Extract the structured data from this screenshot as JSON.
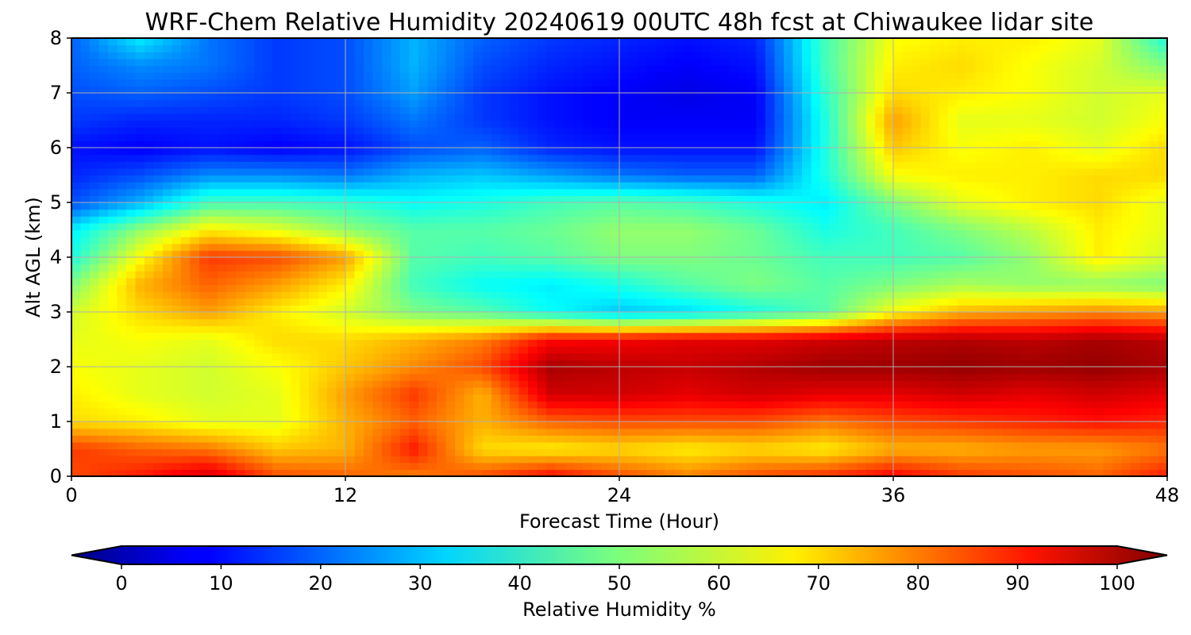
{
  "chart_data": {
    "type": "heatmap",
    "title": "WRF-Chem Relative Humidity 20240619 00UTC 48h fcst at Chiwaukee lidar site",
    "xlabel": "Forecast Time (Hour)",
    "ylabel": "Alt AGL (km)",
    "xlim": [
      0,
      48
    ],
    "ylim": [
      0,
      8
    ],
    "x_ticks": [
      "0",
      "12",
      "24",
      "36",
      "48"
    ],
    "y_ticks": [
      "0",
      "1",
      "2",
      "3",
      "4",
      "5",
      "6",
      "7",
      "8"
    ],
    "grid": true,
    "colorscale": "jet",
    "colorbar": {
      "label": "Relative Humidity %",
      "orientation": "horizontal",
      "position": "bottom",
      "extend": "both",
      "range": [
        0,
        100
      ],
      "ticks": [
        "0",
        "10",
        "20",
        "30",
        "40",
        "50",
        "60",
        "70",
        "80",
        "90",
        "100"
      ]
    },
    "x": [
      0,
      3,
      6,
      9,
      12,
      15,
      18,
      21,
      24,
      27,
      30,
      33,
      36,
      39,
      42,
      45,
      48
    ],
    "y": [
      0,
      0.5,
      1,
      1.5,
      2,
      2.5,
      3,
      3.5,
      4,
      4.5,
      5,
      5.5,
      6,
      6.5,
      7,
      7.5,
      8
    ],
    "z": [
      [
        80,
        85,
        92,
        80,
        78,
        75,
        80,
        87,
        80,
        75,
        80,
        83,
        88,
        82,
        80,
        78,
        85
      ],
      [
        82,
        78,
        76,
        68,
        70,
        85,
        66,
        64,
        66,
        64,
        66,
        64,
        70,
        70,
        72,
        72,
        76
      ],
      [
        66,
        64,
        60,
        60,
        70,
        78,
        70,
        78,
        80,
        80,
        80,
        76,
        80,
        82,
        84,
        86,
        84
      ],
      [
        64,
        60,
        58,
        60,
        72,
        82,
        70,
        92,
        92,
        90,
        92,
        90,
        90,
        92,
        90,
        92,
        90
      ],
      [
        62,
        60,
        58,
        62,
        68,
        74,
        80,
        96,
        94,
        93,
        95,
        97,
        97,
        98,
        97,
        98,
        96
      ],
      [
        60,
        62,
        60,
        66,
        66,
        70,
        75,
        87,
        88,
        90,
        90,
        92,
        94,
        95,
        94,
        96,
        94
      ],
      [
        58,
        66,
        72,
        64,
        58,
        50,
        46,
        38,
        32,
        34,
        40,
        46,
        62,
        70,
        72,
        74,
        72
      ],
      [
        50,
        70,
        78,
        72,
        64,
        44,
        38,
        36,
        40,
        46,
        50,
        46,
        50,
        54,
        52,
        52,
        50
      ],
      [
        40,
        62,
        82,
        80,
        72,
        46,
        44,
        46,
        50,
        50,
        48,
        44,
        44,
        46,
        52,
        64,
        58
      ],
      [
        36,
        52,
        64,
        60,
        52,
        46,
        46,
        48,
        52,
        52,
        48,
        40,
        44,
        50,
        56,
        64,
        60
      ],
      [
        20,
        30,
        44,
        44,
        42,
        38,
        40,
        44,
        46,
        44,
        40,
        36,
        50,
        60,
        64,
        66,
        60
      ],
      [
        16,
        20,
        26,
        26,
        24,
        30,
        32,
        28,
        24,
        22,
        22,
        40,
        62,
        64,
        64,
        66,
        66
      ],
      [
        14,
        12,
        14,
        12,
        14,
        20,
        22,
        16,
        14,
        14,
        14,
        40,
        68,
        62,
        64,
        60,
        66
      ],
      [
        18,
        16,
        16,
        16,
        18,
        24,
        18,
        14,
        12,
        12,
        12,
        40,
        72,
        60,
        60,
        58,
        62
      ],
      [
        20,
        22,
        20,
        18,
        20,
        28,
        18,
        14,
        12,
        10,
        12,
        42,
        66,
        64,
        62,
        58,
        60
      ],
      [
        22,
        26,
        24,
        18,
        20,
        30,
        20,
        16,
        14,
        12,
        14,
        44,
        64,
        66,
        62,
        58,
        50
      ],
      [
        22,
        36,
        24,
        18,
        20,
        30,
        22,
        18,
        16,
        14,
        16,
        44,
        62,
        64,
        64,
        60,
        40
      ]
    ]
  }
}
